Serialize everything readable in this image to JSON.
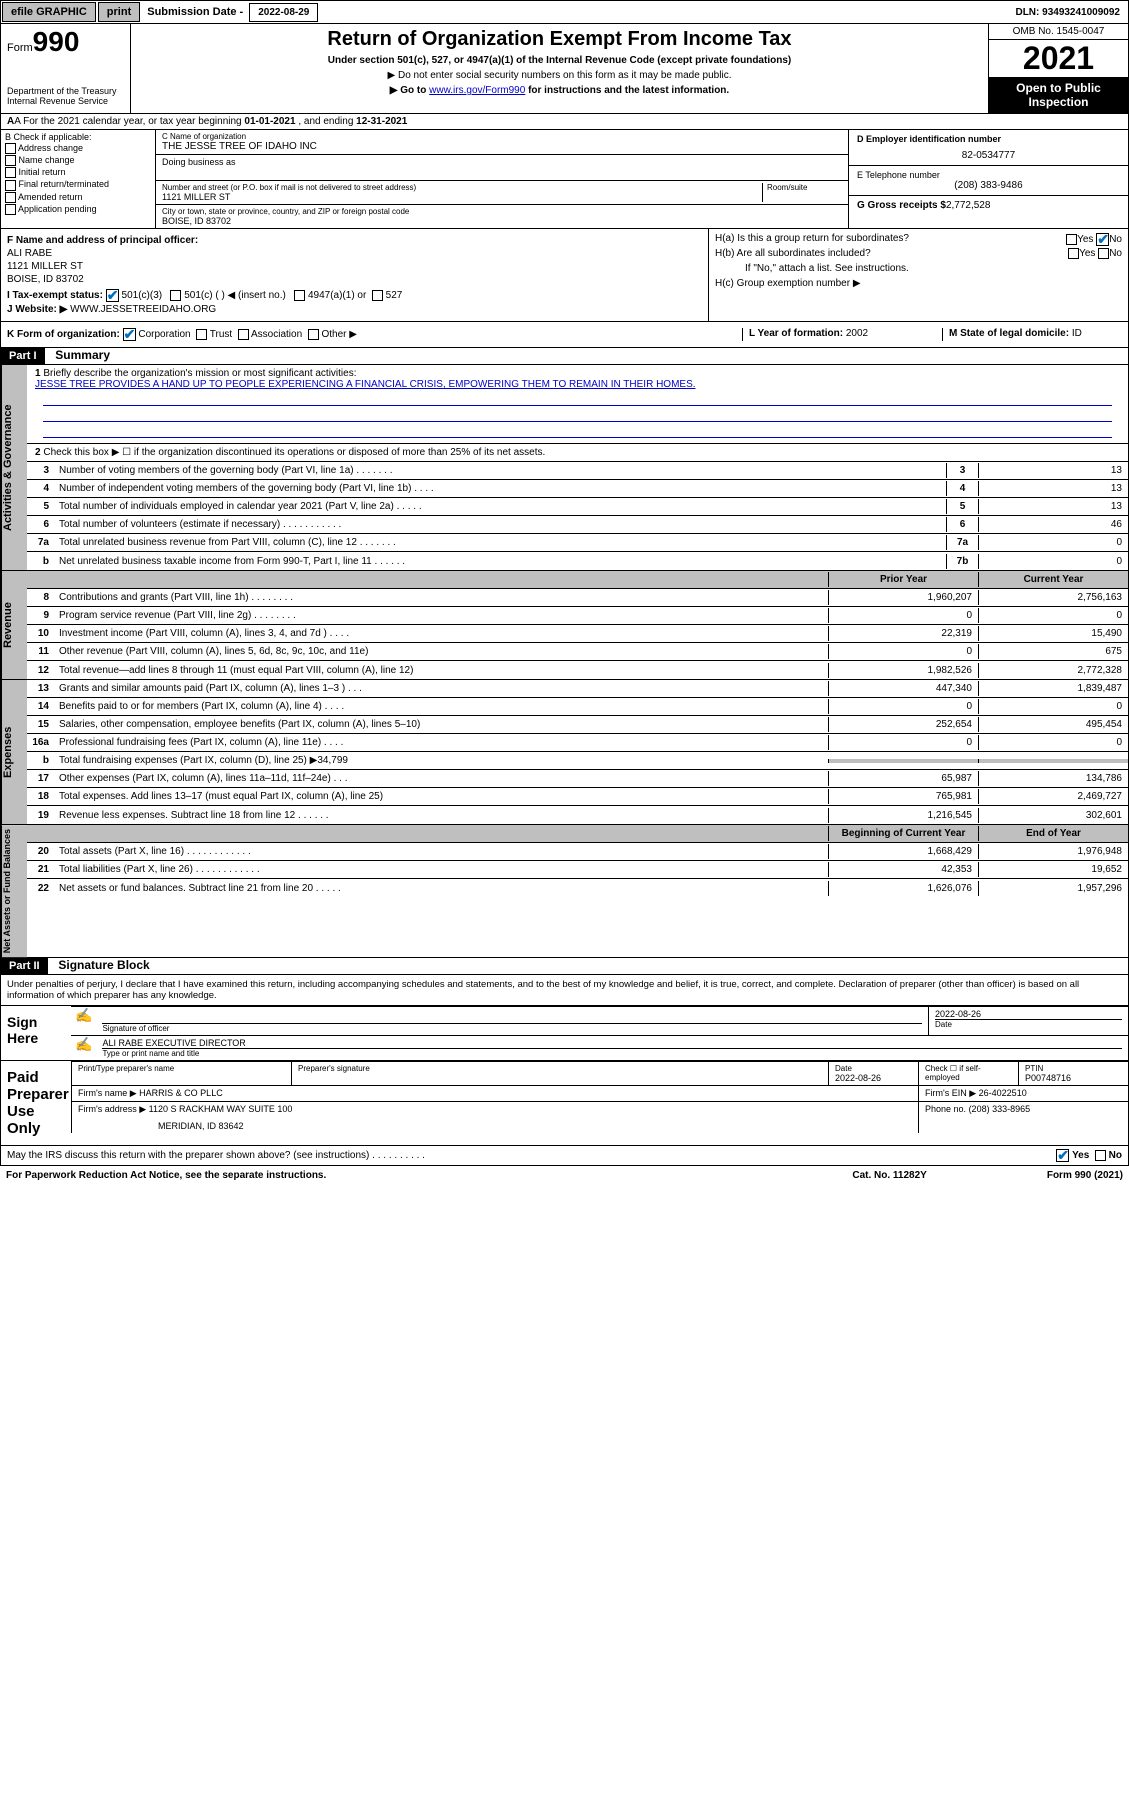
{
  "topbar": {
    "efile": "efile GRAPHIC",
    "print": "print",
    "sub_lbl": "Submission Date -",
    "sub_date": "2022-08-29",
    "dln": "DLN: 93493241009092"
  },
  "header": {
    "form_pre": "Form",
    "form_num": "990",
    "dept": "Department of the Treasury\nInternal Revenue Service",
    "title": "Return of Organization Exempt From Income Tax",
    "sub": "Under section 501(c), 527, or 4947(a)(1) of the Internal Revenue Code (except private foundations)",
    "note1": "▶ Do not enter social security numbers on this form as it may be made public.",
    "note2_pre": "▶ Go to ",
    "note2_link": "www.irs.gov/Form990",
    "note2_post": " for instructions and the latest information.",
    "omb": "OMB No. 1545-0047",
    "year": "2021",
    "pubinsp": "Open to Public Inspection"
  },
  "rowA": {
    "pre": "A For the 2021 calendar year, or tax year beginning ",
    "begin": "01-01-2021",
    "mid": " , and ending ",
    "end": "12-31-2021"
  },
  "sectionB": {
    "hdr": "B Check if applicable:",
    "opts": [
      "Address change",
      "Name change",
      "Initial return",
      "Final return/terminated",
      "Amended return",
      "Application pending"
    ]
  },
  "sectionC": {
    "name_lbl": "C Name of organization",
    "name": "THE JESSE TREE OF IDAHO INC",
    "dba_lbl": "Doing business as",
    "addr_lbl": "Number and street (or P.O. box if mail is not delivered to street address)",
    "room_lbl": "Room/suite",
    "addr": "1121 MILLER ST",
    "city_lbl": "City or town, state or province, country, and ZIP or foreign postal code",
    "city": "BOISE, ID  83702"
  },
  "sectionD": {
    "lbl": "D Employer identification number",
    "ein": "82-0534777"
  },
  "sectionE": {
    "lbl": "E Telephone number",
    "phone": "(208) 383-9486"
  },
  "sectionG": {
    "lbl": "G Gross receipts $",
    "amt": "2,772,528"
  },
  "sectionF": {
    "lbl": "F Name and address of principal officer:",
    "name": "ALI RABE",
    "addr1": "1121 MILLER ST",
    "addr2": "BOISE, ID  83702"
  },
  "sectionH": {
    "a": "H(a)  Is this a group return for subordinates?",
    "b": "H(b)  Are all subordinates included?",
    "b_note": "If \"No,\" attach a list. See instructions.",
    "c": "H(c)  Group exemption number ▶",
    "yes": "Yes",
    "no": "No"
  },
  "rowI": {
    "lbl": "I     Tax-exempt status:",
    "o1": "501(c)(3)",
    "o2": "501(c) (  ) ◀ (insert no.)",
    "o3": "4947(a)(1) or",
    "o4": "527"
  },
  "rowJ": {
    "lbl": "J     Website: ▶",
    "url": "WWW.JESSETREEIDAHO.ORG"
  },
  "rowK": {
    "lbl": "K Form of organization:",
    "opts": [
      "Corporation",
      "Trust",
      "Association",
      "Other ▶"
    ],
    "L_lbl": "L Year of formation:",
    "L_val": "2002",
    "M_lbl": "M State of legal domicile:",
    "M_val": "ID"
  },
  "part1": {
    "hdr": "Part I",
    "title": "Summary",
    "line1_lbl": "Briefly describe the organization's mission or most significant activities:",
    "mission": "JESSE TREE PROVIDES A HAND UP TO PEOPLE EXPERIENCING A FINANCIAL CRISIS, EMPOWERING THEM TO REMAIN IN THEIR HOMES.",
    "line2": "Check this box ▶ ☐  if the organization discontinued its operations or disposed of more than 25% of its net assets.",
    "vtab_gov": "Activities & Governance",
    "vtab_rev": "Revenue",
    "vtab_exp": "Expenses",
    "vtab_net": "Net Assets or Fund Balances",
    "col_prior": "Prior Year",
    "col_curr": "Current Year",
    "col_begin": "Beginning of Current Year",
    "col_end": "End of Year",
    "rows_gov": [
      {
        "n": "3",
        "d": "Number of voting members of the governing body (Part VI, line 1a)   .    .    .    .    .    .    .",
        "box": "3",
        "v": "13"
      },
      {
        "n": "4",
        "d": "Number of independent voting members of the governing body (Part VI, line 1b)  .    .    .    .",
        "box": "4",
        "v": "13"
      },
      {
        "n": "5",
        "d": "Total number of individuals employed in calendar year 2021 (Part V, line 2a)   .    .    .    .    .",
        "box": "5",
        "v": "13"
      },
      {
        "n": "6",
        "d": "Total number of volunteers (estimate if necessary)   .    .    .    .    .    .    .    .    .    .    .",
        "box": "6",
        "v": "46"
      },
      {
        "n": "7a",
        "d": "Total unrelated business revenue from Part VIII, column (C), line 12  .    .    .    .    .    .    .",
        "box": "7a",
        "v": "0"
      },
      {
        "n": "b",
        "d": "Net unrelated business taxable income from Form 990-T, Part I, line 11   .    .    .    .    .    .",
        "box": "7b",
        "v": "0"
      }
    ],
    "rows_rev": [
      {
        "n": "8",
        "d": "Contributions and grants (Part VIII, line 1h)    .    .    .    .    .    .    .    .",
        "p": "1,960,207",
        "c": "2,756,163"
      },
      {
        "n": "9",
        "d": "Program service revenue (Part VIII, line 2g)    .    .    .    .    .    .    .    .",
        "p": "0",
        "c": "0"
      },
      {
        "n": "10",
        "d": "Investment income (Part VIII, column (A), lines 3, 4, and 7d )    .    .    .    .",
        "p": "22,319",
        "c": "15,490"
      },
      {
        "n": "11",
        "d": "Other revenue (Part VIII, column (A), lines 5, 6d, 8c, 9c, 10c, and 11e)",
        "p": "0",
        "c": "675"
      },
      {
        "n": "12",
        "d": "Total revenue—add lines 8 through 11 (must equal Part VIII, column (A), line 12)",
        "p": "1,982,526",
        "c": "2,772,328"
      }
    ],
    "rows_exp": [
      {
        "n": "13",
        "d": "Grants and similar amounts paid (Part IX, column (A), lines 1–3 )   .    .    .",
        "p": "447,340",
        "c": "1,839,487"
      },
      {
        "n": "14",
        "d": "Benefits paid to or for members (Part IX, column (A), line 4)   .    .    .    .",
        "p": "0",
        "c": "0"
      },
      {
        "n": "15",
        "d": "Salaries, other compensation, employee benefits (Part IX, column (A), lines 5–10)",
        "p": "252,654",
        "c": "495,454"
      },
      {
        "n": "16a",
        "d": "Professional fundraising fees (Part IX, column (A), line 11e)   .    .    .    .",
        "p": "0",
        "c": "0"
      },
      {
        "n": "b",
        "d": "Total fundraising expenses (Part IX, column (D), line 25) ▶34,799",
        "p": "",
        "c": "",
        "shaded": true
      },
      {
        "n": "17",
        "d": "Other expenses (Part IX, column (A), lines 11a–11d, 11f–24e)   .    .    .",
        "p": "65,987",
        "c": "134,786"
      },
      {
        "n": "18",
        "d": "Total expenses. Add lines 13–17 (must equal Part IX, column (A), line 25)",
        "p": "765,981",
        "c": "2,469,727"
      },
      {
        "n": "19",
        "d": "Revenue less expenses. Subtract line 18 from line 12   .    .    .    .    .    .",
        "p": "1,216,545",
        "c": "302,601"
      }
    ],
    "rows_net": [
      {
        "n": "20",
        "d": "Total assets (Part X, line 16)   .    .    .    .    .    .    .    .    .    .    .    .",
        "p": "1,668,429",
        "c": "1,976,948"
      },
      {
        "n": "21",
        "d": "Total liabilities (Part X, line 26)   .    .    .    .    .    .    .    .    .    .    .    .",
        "p": "42,353",
        "c": "19,652"
      },
      {
        "n": "22",
        "d": "Net assets or fund balances. Subtract line 21 from line 20   .    .    .    .    .",
        "p": "1,626,076",
        "c": "1,957,296"
      }
    ]
  },
  "part2": {
    "hdr": "Part II",
    "title": "Signature Block",
    "decl": "Under penalties of perjury, I declare that I have examined this return, including accompanying schedules and statements, and to the best of my knowledge and belief, it is true, correct, and complete. Declaration of preparer (other than officer) is based on all information of which preparer has any knowledge.",
    "sign_here": "Sign Here",
    "sig_officer": "Signature of officer",
    "sig_date": "2022-08-26",
    "date_lbl": "Date",
    "name_title": "ALI RABE  EXECUTIVE DIRECTOR",
    "name_title_lbl": "Type or print name and title",
    "paid_hdr": "Paid Preparer Use Only",
    "prep_name_lbl": "Print/Type preparer's name",
    "prep_sig_lbl": "Preparer's signature",
    "prep_date_lbl": "Date",
    "prep_date": "2022-08-26",
    "check_lbl": "Check ☐ if self-employed",
    "ptin_lbl": "PTIN",
    "ptin": "P00748716",
    "firm_name_lbl": "Firm's name   ▶",
    "firm_name": "HARRIS & CO PLLC",
    "firm_ein_lbl": "Firm's EIN ▶",
    "firm_ein": "26-4022510",
    "firm_addr_lbl": "Firm's address ▶",
    "firm_addr1": "1120 S RACKHAM WAY SUITE 100",
    "firm_addr2": "MERIDIAN, ID  83642",
    "firm_phone_lbl": "Phone no.",
    "firm_phone": "(208) 333-8965",
    "discuss": "May the IRS discuss this return with the preparer shown above? (see instructions)   .    .    .    .    .    .    .    .    .    .",
    "yes": "Yes",
    "no": "No"
  },
  "footer": {
    "pra": "For Paperwork Reduction Act Notice, see the separate instructions.",
    "cat": "Cat. No. 11282Y",
    "form": "Form 990 (2021)"
  }
}
